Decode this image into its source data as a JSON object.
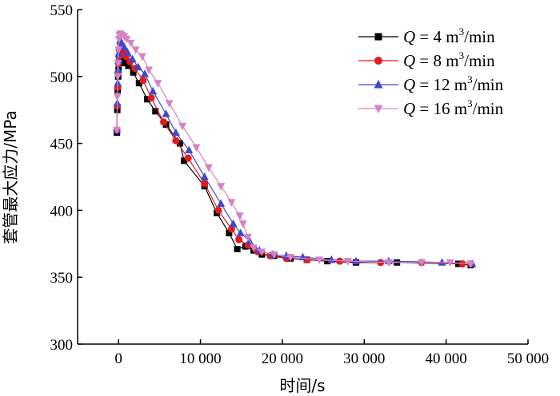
{
  "chart_data": {
    "type": "line",
    "title": "",
    "xlabel": "时间/s",
    "ylabel": "套管最大应力/MPa",
    "xlim": [
      -5000,
      50000
    ],
    "ylim": [
      300,
      550
    ],
    "xticks": [
      0,
      10000,
      20000,
      30000,
      40000,
      50000
    ],
    "xtick_labels": [
      "0",
      "10 000",
      "20 000",
      "30 000",
      "40 000",
      "50 000"
    ],
    "yticks": [
      300,
      350,
      400,
      450,
      500,
      550
    ],
    "ytick_labels": [
      "300",
      "350",
      "400",
      "450",
      "500",
      "550"
    ],
    "grid": false,
    "legend_position": "top-right",
    "series": [
      {
        "name": "Q = 4 m³/min",
        "legend": {
          "q": "Q",
          "eq": " = 4 m",
          "sup": "3",
          "unit": "/min"
        },
        "color": "#000000",
        "marker": "square",
        "points": [
          [
            -200,
            458
          ],
          [
            -150,
            475
          ],
          [
            -100,
            490
          ],
          [
            -50,
            500
          ],
          [
            0,
            505
          ],
          [
            50,
            510
          ],
          [
            100,
            515
          ],
          [
            200,
            520
          ],
          [
            300,
            515
          ],
          [
            500,
            513
          ],
          [
            800,
            510
          ],
          [
            1200,
            508
          ],
          [
            1800,
            503
          ],
          [
            2500,
            495
          ],
          [
            3500,
            483
          ],
          [
            4500,
            474
          ],
          [
            5800,
            464
          ],
          [
            7500,
            450
          ],
          [
            8000,
            437
          ],
          [
            10500,
            418
          ],
          [
            12000,
            398
          ],
          [
            13500,
            383
          ],
          [
            14500,
            371
          ],
          [
            15500,
            373
          ],
          [
            16500,
            370
          ],
          [
            17500,
            367
          ],
          [
            19000,
            366
          ],
          [
            21000,
            364
          ],
          [
            23000,
            363
          ],
          [
            25500,
            362
          ],
          [
            29000,
            361
          ],
          [
            34000,
            361
          ],
          [
            41500,
            360
          ],
          [
            43000,
            359
          ]
        ]
      },
      {
        "name": "Q = 8 m³/min",
        "legend": {
          "q": "Q",
          "eq": " = 8 m",
          "sup": "3",
          "unit": "/min"
        },
        "color": "#e41a1c",
        "marker": "circle",
        "points": [
          [
            -200,
            460
          ],
          [
            -150,
            478
          ],
          [
            -100,
            492
          ],
          [
            -50,
            503
          ],
          [
            0,
            510
          ],
          [
            50,
            515
          ],
          [
            100,
            520
          ],
          [
            200,
            525
          ],
          [
            300,
            522
          ],
          [
            500,
            518
          ],
          [
            900,
            515
          ],
          [
            1400,
            511
          ],
          [
            2000,
            506
          ],
          [
            3000,
            497
          ],
          [
            4000,
            484
          ],
          [
            5500,
            466
          ],
          [
            7000,
            452
          ],
          [
            8500,
            439
          ],
          [
            10500,
            420
          ],
          [
            12200,
            400
          ],
          [
            13800,
            386
          ],
          [
            14700,
            378
          ],
          [
            15800,
            374
          ],
          [
            17000,
            369
          ],
          [
            18500,
            366
          ],
          [
            20500,
            364
          ],
          [
            23000,
            363
          ],
          [
            27000,
            362
          ],
          [
            32000,
            361
          ],
          [
            37000,
            361
          ],
          [
            42000,
            360
          ],
          [
            43000,
            360
          ]
        ]
      },
      {
        "name": "Q = 12 m³/min",
        "legend": {
          "q": "Q",
          "eq": " = 12 m",
          "sup": "3",
          "unit": "/min"
        },
        "color": "#3f48cc",
        "marker": "triangle-up",
        "points": [
          [
            -200,
            460
          ],
          [
            -150,
            480
          ],
          [
            -100,
            495
          ],
          [
            -50,
            505
          ],
          [
            0,
            512
          ],
          [
            50,
            517
          ],
          [
            100,
            522
          ],
          [
            200,
            527
          ],
          [
            400,
            525
          ],
          [
            700,
            522
          ],
          [
            1100,
            518
          ],
          [
            1700,
            513
          ],
          [
            2400,
            507
          ],
          [
            3200,
            502
          ],
          [
            4200,
            489
          ],
          [
            5800,
            472
          ],
          [
            7000,
            458
          ],
          [
            8600,
            445
          ],
          [
            10500,
            425
          ],
          [
            12500,
            405
          ],
          [
            14000,
            390
          ],
          [
            14900,
            383
          ],
          [
            16000,
            377
          ],
          [
            17200,
            370
          ],
          [
            18800,
            367
          ],
          [
            20500,
            366
          ],
          [
            22500,
            365
          ],
          [
            26000,
            363
          ],
          [
            29000,
            362
          ],
          [
            33000,
            362
          ],
          [
            39500,
            361
          ],
          [
            43200,
            360
          ]
        ]
      },
      {
        "name": "Q = 16 m³/min",
        "legend": {
          "q": "Q",
          "eq": " = 16 m",
          "sup": "3",
          "unit": "/min"
        },
        "color": "#d383c6",
        "marker": "triangle-down",
        "points": [
          [
            -200,
            460
          ],
          [
            -150,
            485
          ],
          [
            -100,
            500
          ],
          [
            -50,
            510
          ],
          [
            0,
            520
          ],
          [
            50,
            528
          ],
          [
            100,
            531
          ],
          [
            200,
            532
          ],
          [
            400,
            531
          ],
          [
            700,
            530
          ],
          [
            1000,
            528
          ],
          [
            1500,
            525
          ],
          [
            2100,
            520
          ],
          [
            2900,
            515
          ],
          [
            3700,
            505
          ],
          [
            4800,
            495
          ],
          [
            6200,
            480
          ],
          [
            7800,
            463
          ],
          [
            9500,
            447
          ],
          [
            11000,
            432
          ],
          [
            12500,
            418
          ],
          [
            13800,
            406
          ],
          [
            14800,
            396
          ],
          [
            15200,
            390
          ],
          [
            15800,
            380
          ],
          [
            16500,
            372
          ],
          [
            17500,
            369
          ],
          [
            19000,
            367
          ],
          [
            21000,
            365
          ],
          [
            24500,
            363
          ],
          [
            28000,
            362
          ],
          [
            33000,
            361
          ],
          [
            37000,
            361
          ],
          [
            40500,
            361
          ],
          [
            43000,
            360
          ]
        ]
      }
    ]
  }
}
